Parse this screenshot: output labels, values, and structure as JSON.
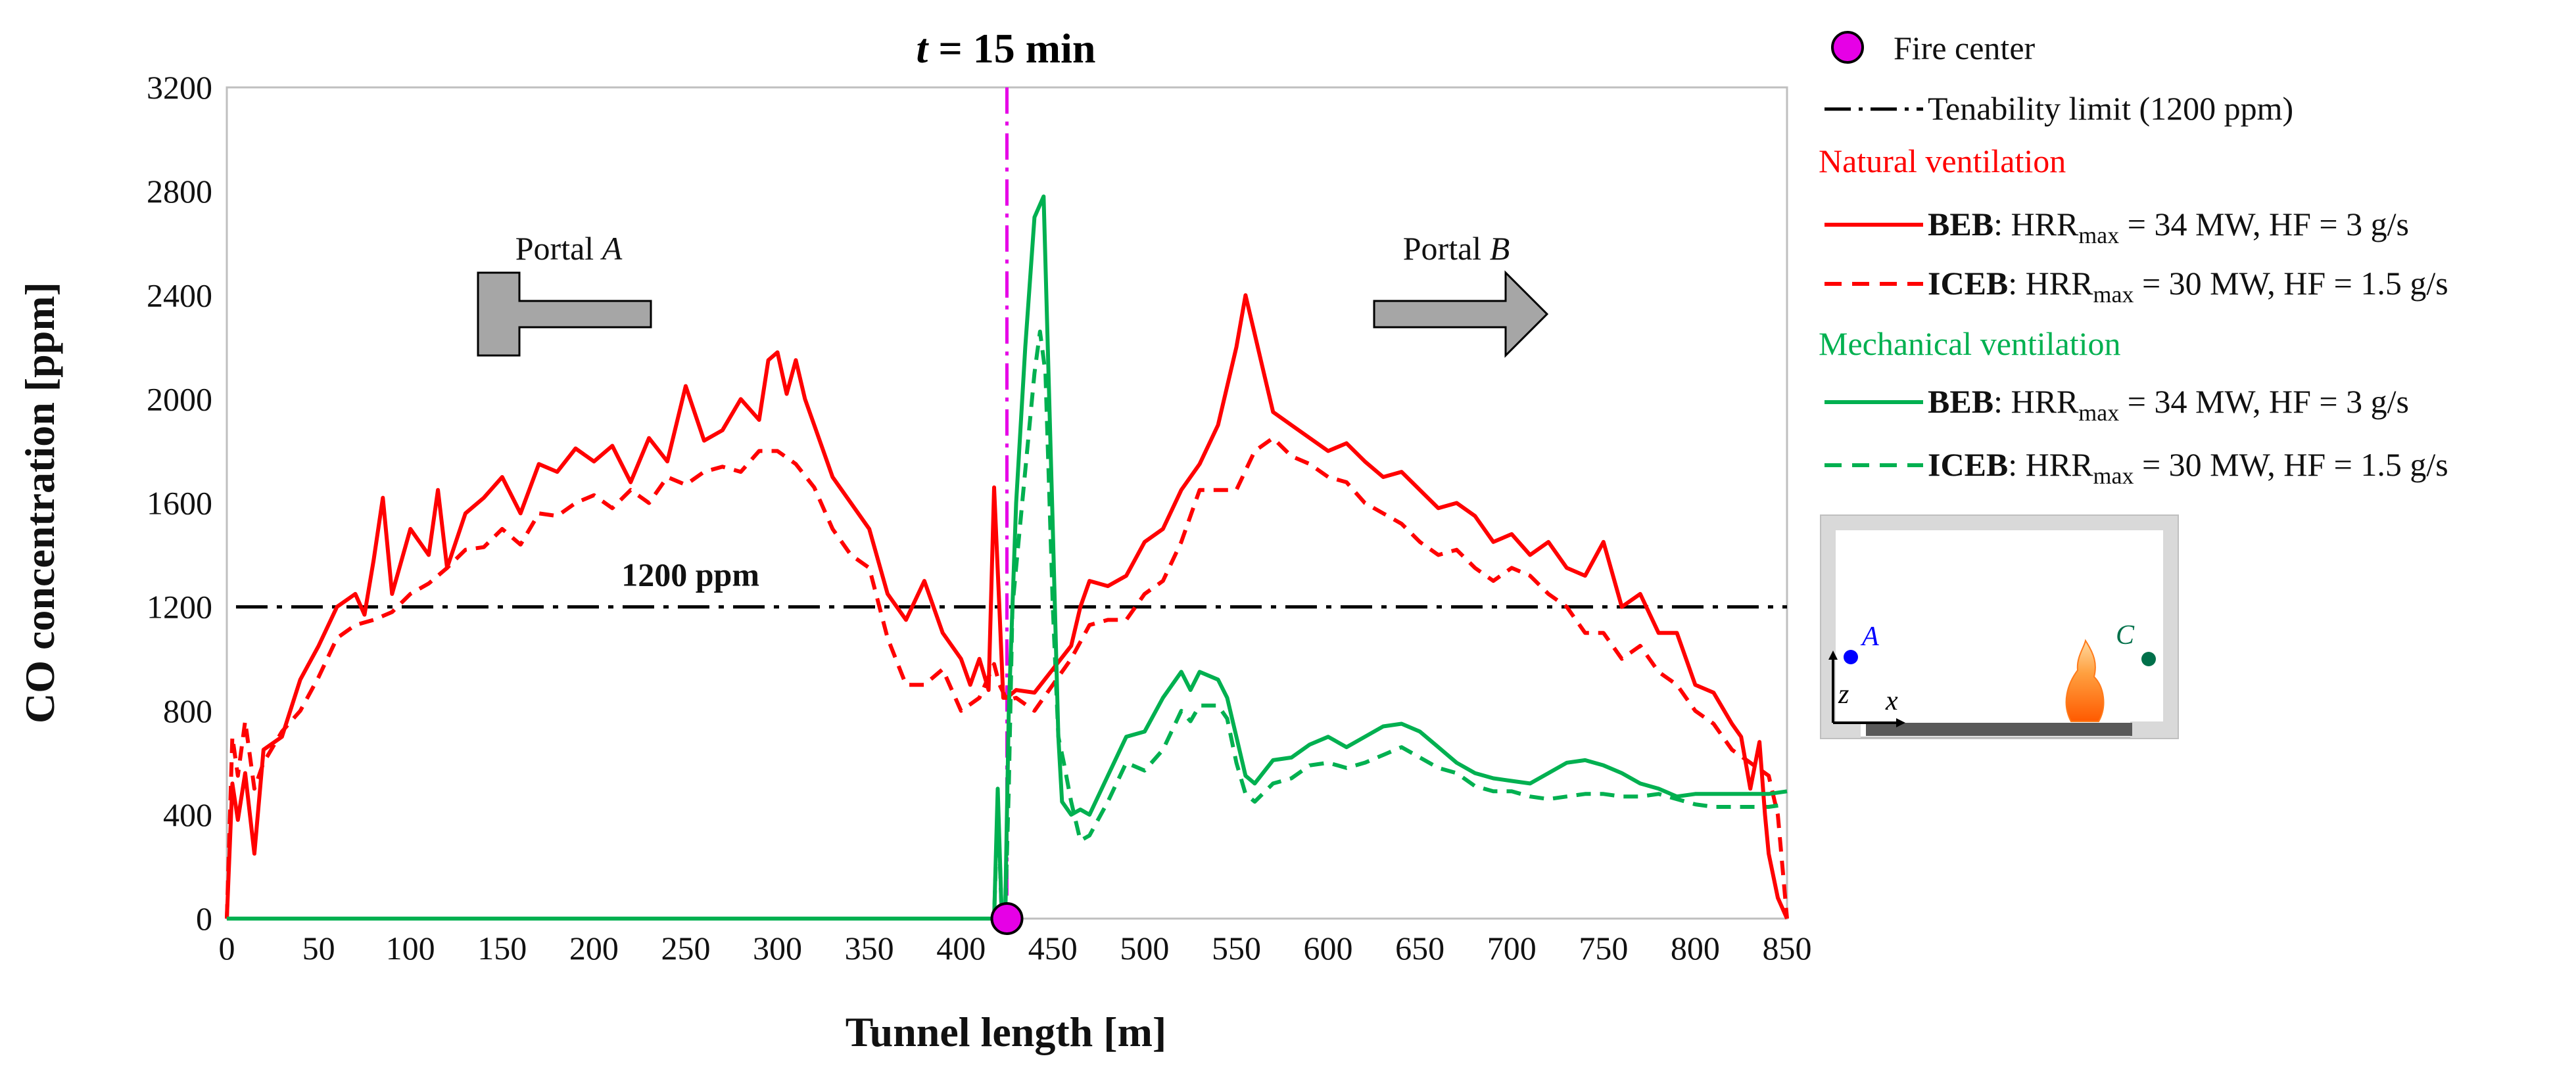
{
  "chart_data": {
    "type": "line",
    "title_var": "t",
    "title_rest": " = 15 min",
    "xlabel": "Tunnel length [m]",
    "ylabel": "CO concentration [ppm]",
    "xlim": [
      0,
      850
    ],
    "ylim": [
      0,
      3200
    ],
    "x_ticks": [
      0,
      50,
      100,
      150,
      200,
      250,
      300,
      350,
      400,
      450,
      500,
      550,
      600,
      650,
      700,
      750,
      800,
      850
    ],
    "y_ticks": [
      0,
      400,
      800,
      1200,
      1600,
      2000,
      2400,
      2800,
      3200
    ],
    "grid": false,
    "fire_center": {
      "x": 425,
      "y": 0,
      "label": "Fire center",
      "color": "#e600e6"
    },
    "tenability_limit": {
      "y": 1200,
      "label": "Tenability limit (1200 ppm)",
      "annotation": "1200 ppm"
    },
    "portals": [
      {
        "prefix": "Portal ",
        "letter": "A",
        "direction": "left"
      },
      {
        "prefix": "Portal ",
        "letter": "B",
        "direction": "right"
      }
    ],
    "series": [
      {
        "name": "Natural ventilation BEB",
        "group": "Natural ventilation",
        "color": "#ff0000",
        "dash": "solid",
        "bold_label": "BEB",
        "label_pre": ": HRR",
        "label_sub": "max",
        "label_post": " = 34 MW, HF = 3 g/s",
        "x": [
          0,
          3,
          6,
          10,
          15,
          20,
          30,
          40,
          50,
          60,
          70,
          75,
          80,
          85,
          90,
          100,
          110,
          115,
          120,
          130,
          140,
          150,
          160,
          170,
          180,
          190,
          200,
          210,
          220,
          230,
          240,
          250,
          260,
          270,
          280,
          290,
          295,
          300,
          305,
          310,
          315,
          320,
          330,
          340,
          350,
          360,
          370,
          380,
          390,
          400,
          405,
          410,
          415,
          418,
          421,
          423,
          425,
          430,
          440,
          450,
          460,
          465,
          470,
          480,
          490,
          500,
          510,
          520,
          530,
          540,
          550,
          555,
          560,
          565,
          570,
          580,
          590,
          600,
          610,
          620,
          630,
          640,
          650,
          660,
          670,
          680,
          690,
          700,
          710,
          720,
          730,
          740,
          750,
          760,
          770,
          780,
          790,
          800,
          810,
          820,
          825,
          830,
          835,
          838,
          840,
          845,
          850
        ],
        "y": [
          0,
          520,
          380,
          560,
          250,
          650,
          700,
          920,
          1050,
          1200,
          1250,
          1170,
          1380,
          1620,
          1250,
          1500,
          1400,
          1650,
          1350,
          1560,
          1620,
          1700,
          1560,
          1750,
          1720,
          1810,
          1760,
          1820,
          1680,
          1850,
          1760,
          2050,
          1840,
          1880,
          2000,
          1920,
          2150,
          2180,
          2020,
          2150,
          2000,
          1900,
          1700,
          1600,
          1500,
          1250,
          1150,
          1300,
          1100,
          1000,
          900,
          1000,
          880,
          1660,
          1180,
          850,
          850,
          880,
          870,
          960,
          1050,
          1200,
          1300,
          1280,
          1320,
          1450,
          1500,
          1650,
          1750,
          1900,
          2200,
          2400,
          2250,
          2100,
          1950,
          1900,
          1850,
          1800,
          1830,
          1760,
          1700,
          1720,
          1650,
          1580,
          1600,
          1550,
          1450,
          1480,
          1400,
          1450,
          1350,
          1320,
          1450,
          1200,
          1250,
          1100,
          1100,
          900,
          870,
          750,
          700,
          500,
          680,
          400,
          250,
          80,
          0
        ]
      },
      {
        "name": "Natural ventilation ICEB",
        "group": "Natural ventilation",
        "color": "#ff0000",
        "dash": "dashed",
        "bold_label": "ICEB",
        "label_pre": ": HRR",
        "label_sub": "max",
        "label_post": " = 30 MW, HF = 1.5 g/s",
        "x": [
          0,
          3,
          6,
          10,
          15,
          20,
          30,
          40,
          50,
          60,
          70,
          80,
          90,
          100,
          110,
          120,
          130,
          140,
          150,
          160,
          170,
          180,
          190,
          200,
          210,
          220,
          230,
          240,
          250,
          260,
          270,
          280,
          290,
          300,
          310,
          320,
          330,
          340,
          350,
          360,
          370,
          380,
          390,
          400,
          410,
          418,
          421,
          425,
          430,
          440,
          450,
          460,
          470,
          480,
          490,
          500,
          510,
          520,
          530,
          540,
          550,
          560,
          570,
          580,
          590,
          600,
          610,
          620,
          630,
          640,
          650,
          660,
          670,
          680,
          690,
          700,
          710,
          720,
          730,
          740,
          750,
          760,
          770,
          780,
          790,
          800,
          810,
          820,
          830,
          840,
          845,
          850
        ],
        "y": [
          0,
          700,
          550,
          760,
          500,
          600,
          720,
          800,
          930,
          1080,
          1130,
          1150,
          1180,
          1250,
          1290,
          1350,
          1420,
          1430,
          1500,
          1440,
          1560,
          1550,
          1600,
          1630,
          1580,
          1650,
          1600,
          1700,
          1670,
          1720,
          1740,
          1720,
          1800,
          1800,
          1750,
          1660,
          1500,
          1400,
          1350,
          1080,
          900,
          900,
          960,
          800,
          850,
          980,
          900,
          840,
          850,
          800,
          900,
          1000,
          1130,
          1150,
          1150,
          1250,
          1300,
          1450,
          1650,
          1650,
          1650,
          1800,
          1850,
          1780,
          1750,
          1700,
          1680,
          1600,
          1560,
          1520,
          1450,
          1400,
          1420,
          1350,
          1300,
          1350,
          1320,
          1250,
          1200,
          1100,
          1100,
          1000,
          1050,
          950,
          900,
          800,
          750,
          650,
          600,
          550,
          400,
          0
        ]
      },
      {
        "name": "Mechanical ventilation BEB",
        "group": "Mechanical ventilation",
        "color": "#00b050",
        "dash": "solid",
        "bold_label": "BEB",
        "label_pre": ": HRR",
        "label_sub": "max",
        "label_post": " = 34 MW, HF = 3 g/s",
        "x": [
          0,
          100,
          200,
          300,
          400,
          418,
          420,
          422,
          424,
          426,
          430,
          435,
          440,
          445,
          450,
          453,
          455,
          460,
          465,
          470,
          480,
          490,
          500,
          510,
          520,
          525,
          530,
          540,
          545,
          550,
          555,
          560,
          570,
          580,
          590,
          600,
          610,
          620,
          630,
          640,
          650,
          660,
          670,
          680,
          690,
          700,
          710,
          720,
          730,
          740,
          750,
          760,
          770,
          780,
          790,
          800,
          810,
          820,
          830,
          840,
          850
        ],
        "y": [
          0,
          0,
          0,
          0,
          0,
          0,
          500,
          50,
          0,
          800,
          1600,
          2200,
          2700,
          2780,
          1500,
          700,
          450,
          400,
          420,
          400,
          550,
          700,
          720,
          850,
          950,
          880,
          950,
          920,
          850,
          700,
          550,
          520,
          610,
          620,
          670,
          700,
          660,
          700,
          740,
          750,
          720,
          660,
          600,
          560,
          540,
          530,
          520,
          560,
          600,
          610,
          590,
          560,
          520,
          500,
          470,
          480,
          480,
          480,
          480,
          480,
          490
        ]
      },
      {
        "name": "Mechanical ventilation ICEB",
        "group": "Mechanical ventilation",
        "color": "#00b050",
        "dash": "dashed",
        "bold_label": "ICEB",
        "label_pre": ": HRR",
        "label_sub": "max",
        "label_post": " = 30 MW, HF = 1.5 g/s",
        "x": [
          0,
          100,
          200,
          300,
          400,
          418,
          420,
          422,
          424,
          426,
          428,
          432,
          436,
          440,
          443,
          446,
          450,
          453,
          456,
          460,
          465,
          470,
          480,
          490,
          500,
          510,
          520,
          525,
          530,
          540,
          545,
          550,
          555,
          560,
          570,
          580,
          590,
          600,
          610,
          620,
          630,
          640,
          650,
          660,
          670,
          680,
          690,
          700,
          710,
          720,
          730,
          740,
          750,
          760,
          770,
          780,
          790,
          800,
          810,
          820,
          830,
          840,
          850
        ],
        "y": [
          0,
          0,
          0,
          0,
          0,
          0,
          450,
          50,
          0,
          500,
          1200,
          1500,
          1800,
          2100,
          2260,
          2100,
          1200,
          700,
          600,
          450,
          300,
          320,
          450,
          600,
          570,
          650,
          800,
          760,
          820,
          820,
          770,
          600,
          480,
          450,
          520,
          540,
          590,
          600,
          580,
          600,
          630,
          660,
          620,
          580,
          560,
          510,
          490,
          490,
          470,
          460,
          470,
          480,
          480,
          470,
          470,
          480,
          460,
          440,
          430,
          430,
          430,
          430,
          440
        ]
      }
    ],
    "legend_groups": [
      {
        "title": "Natural ventilation",
        "color": "#ff0000"
      },
      {
        "title": "Mechanical ventilation",
        "color": "#00b050"
      }
    ],
    "legend_position": "right-outside",
    "inset": {
      "label_A": "A",
      "label_C": "C",
      "axis_z": "z",
      "axis_x": "x"
    }
  }
}
